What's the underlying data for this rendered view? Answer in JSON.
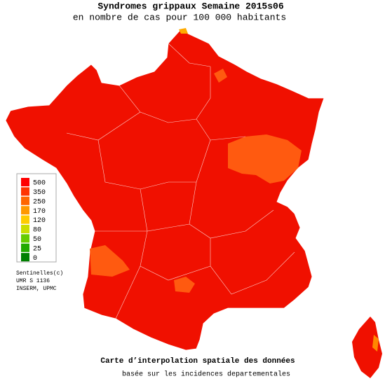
{
  "header": {
    "title": "Syndromes grippaux Semaine 2015s06",
    "subtitle": "en nombre de cas pour 100 000 habitants"
  },
  "legend": {
    "items": [
      {
        "label": 500,
        "color": "#ff0000"
      },
      {
        "label": 350,
        "color": "#ff3300"
      },
      {
        "label": 250,
        "color": "#ff6600"
      },
      {
        "label": 170,
        "color": "#ff9900"
      },
      {
        "label": 120,
        "color": "#ffcc00"
      },
      {
        "label": 80,
        "color": "#ccdd00"
      },
      {
        "label": 50,
        "color": "#66cc00"
      },
      {
        "label": 25,
        "color": "#22aa00"
      },
      {
        "label": 0,
        "color": "#008000"
      }
    ]
  },
  "credits": [
    "Sentinelles(c)",
    "UMR S 1136",
    "INSERM, UPMC"
  ],
  "footer": {
    "title": "Carte d’interpolation spatiale des données",
    "subtitle": "basée sur les incidences departementales"
  }
}
